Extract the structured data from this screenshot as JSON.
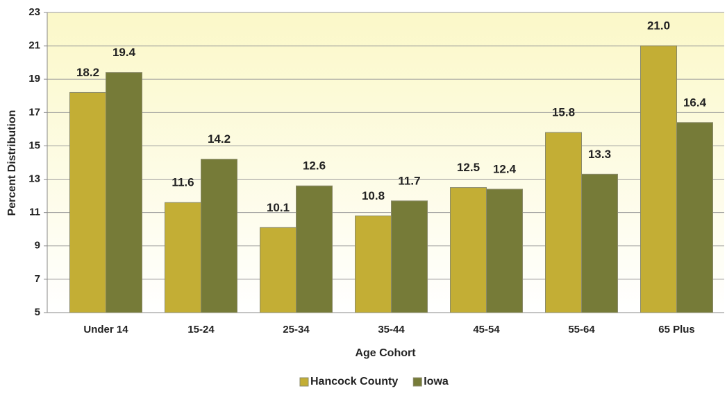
{
  "chart_data": {
    "type": "bar",
    "x_label": "Age Cohort",
    "y_label": "Percent Distribution",
    "categories": [
      "Under 14",
      "15-24",
      "25-34",
      "35-44",
      "45-54",
      "55-64",
      "65 Plus"
    ],
    "series": [
      {
        "name": "Hancock County",
        "color": "#c3ae35",
        "values": [
          18.2,
          11.6,
          10.1,
          10.8,
          12.5,
          15.8,
          21.0
        ],
        "value_labels": [
          "18.2",
          "11.6",
          "10.1",
          "10.8",
          "12.5",
          "15.8",
          "21.0"
        ]
      },
      {
        "name": "Iowa",
        "color": "#767b38",
        "values": [
          19.4,
          14.2,
          12.6,
          11.7,
          12.4,
          13.3,
          16.4
        ],
        "value_labels": [
          "19.4",
          "14.2",
          "12.6",
          "11.7",
          "12.4",
          "13.3",
          "16.4"
        ]
      }
    ],
    "ylim": [
      5,
      23
    ],
    "yticks": [
      5,
      7,
      9,
      11,
      13,
      15,
      17,
      19,
      21,
      23
    ],
    "grid": true,
    "legend": "bottom"
  }
}
